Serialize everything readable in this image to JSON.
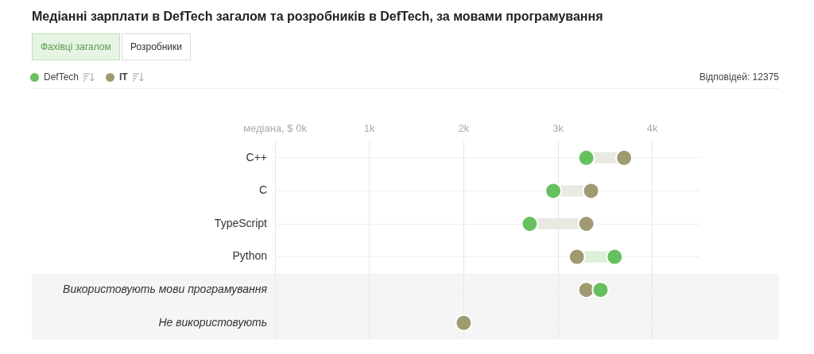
{
  "chart_data": {
    "type": "scatter",
    "title": "Медіанні зарплати в DefTech загалом та розробників в DefTech, за мовами програмування",
    "annotations": [
      "Фахівці загалом",
      "Розробники",
      "Відповідей: 12375"
    ],
    "orientation": "horizontal",
    "categories": [
      "C++",
      "C",
      "TypeScript",
      "Python",
      "Використовують мови програмування",
      "Не використовують"
    ],
    "series": [
      {
        "name": "DefTech",
        "color": "#66c05e",
        "values": [
          3300,
          2950,
          2700,
          3600,
          3450,
          null
        ]
      },
      {
        "name": "IT",
        "color": "#a09a72",
        "values": [
          3700,
          3350,
          3300,
          3200,
          3300,
          2000
        ]
      }
    ],
    "xlim": [
      0,
      4500
    ],
    "xticks": [
      {
        "value": 0,
        "label": "медіана, $ 0k"
      },
      {
        "value": 1000,
        "label": "1k"
      },
      {
        "value": 2000,
        "label": "2k"
      },
      {
        "value": 3000,
        "label": "3k"
      },
      {
        "value": 4000,
        "label": "4k"
      }
    ],
    "bands": [
      {
        "axis": "y",
        "from": "Використовують мови програмування",
        "to": "Не використовують",
        "color": "#f5f5f5"
      }
    ],
    "grid": true,
    "legend": "top left",
    "marker": "circle"
  }
}
